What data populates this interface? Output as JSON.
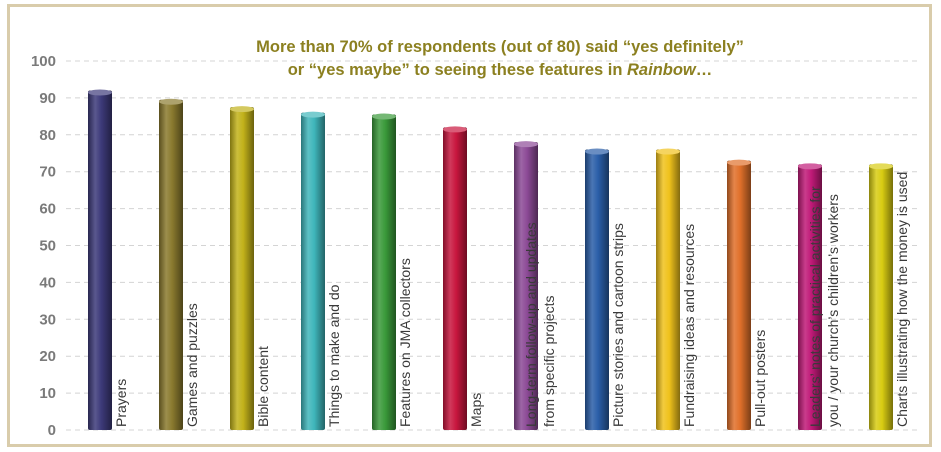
{
  "chart_data": {
    "type": "bar",
    "title_line1": "More than 70% of respondents (out of 80) said “yes definitely”",
    "title_line2_pre": "or “yes maybe” to seeing these features in ",
    "title_line2_em": "Rainbow",
    "title_line2_post": "…",
    "ylim": [
      0,
      100
    ],
    "yticks": [
      0,
      10,
      20,
      30,
      40,
      50,
      60,
      70,
      80,
      90,
      100
    ],
    "grid": true,
    "legend": "none",
    "categories": [
      [
        "Prayers"
      ],
      [
        "Games and puzzles"
      ],
      [
        "Bible content"
      ],
      [
        "Things to make and do"
      ],
      [
        "Features on JMA collectors"
      ],
      [
        "Maps"
      ],
      [
        "Long-term follow-up and updates",
        "from specific projects"
      ],
      [
        "Picture stories and cartoon strips"
      ],
      [
        "Fundraising ideas and resources"
      ],
      [
        "Pull-out posters"
      ],
      [
        "Leaders’ notes of practical activities for",
        "you / your church’s children’s workers"
      ],
      [
        "Charts illustrating how the money is used"
      ]
    ],
    "values": [
      92,
      89.5,
      87.5,
      86,
      85.5,
      82,
      78,
      76,
      76,
      73,
      72,
      72
    ],
    "colors": [
      "#3d3a7a",
      "#8a7a2e",
      "#c2b21a",
      "#3fb6bb",
      "#3a9a3a",
      "#c8163e",
      "#8c4a96",
      "#2a5ea8",
      "#f0c21c",
      "#e0702a",
      "#c01a78",
      "#d8cc12"
    ]
  }
}
